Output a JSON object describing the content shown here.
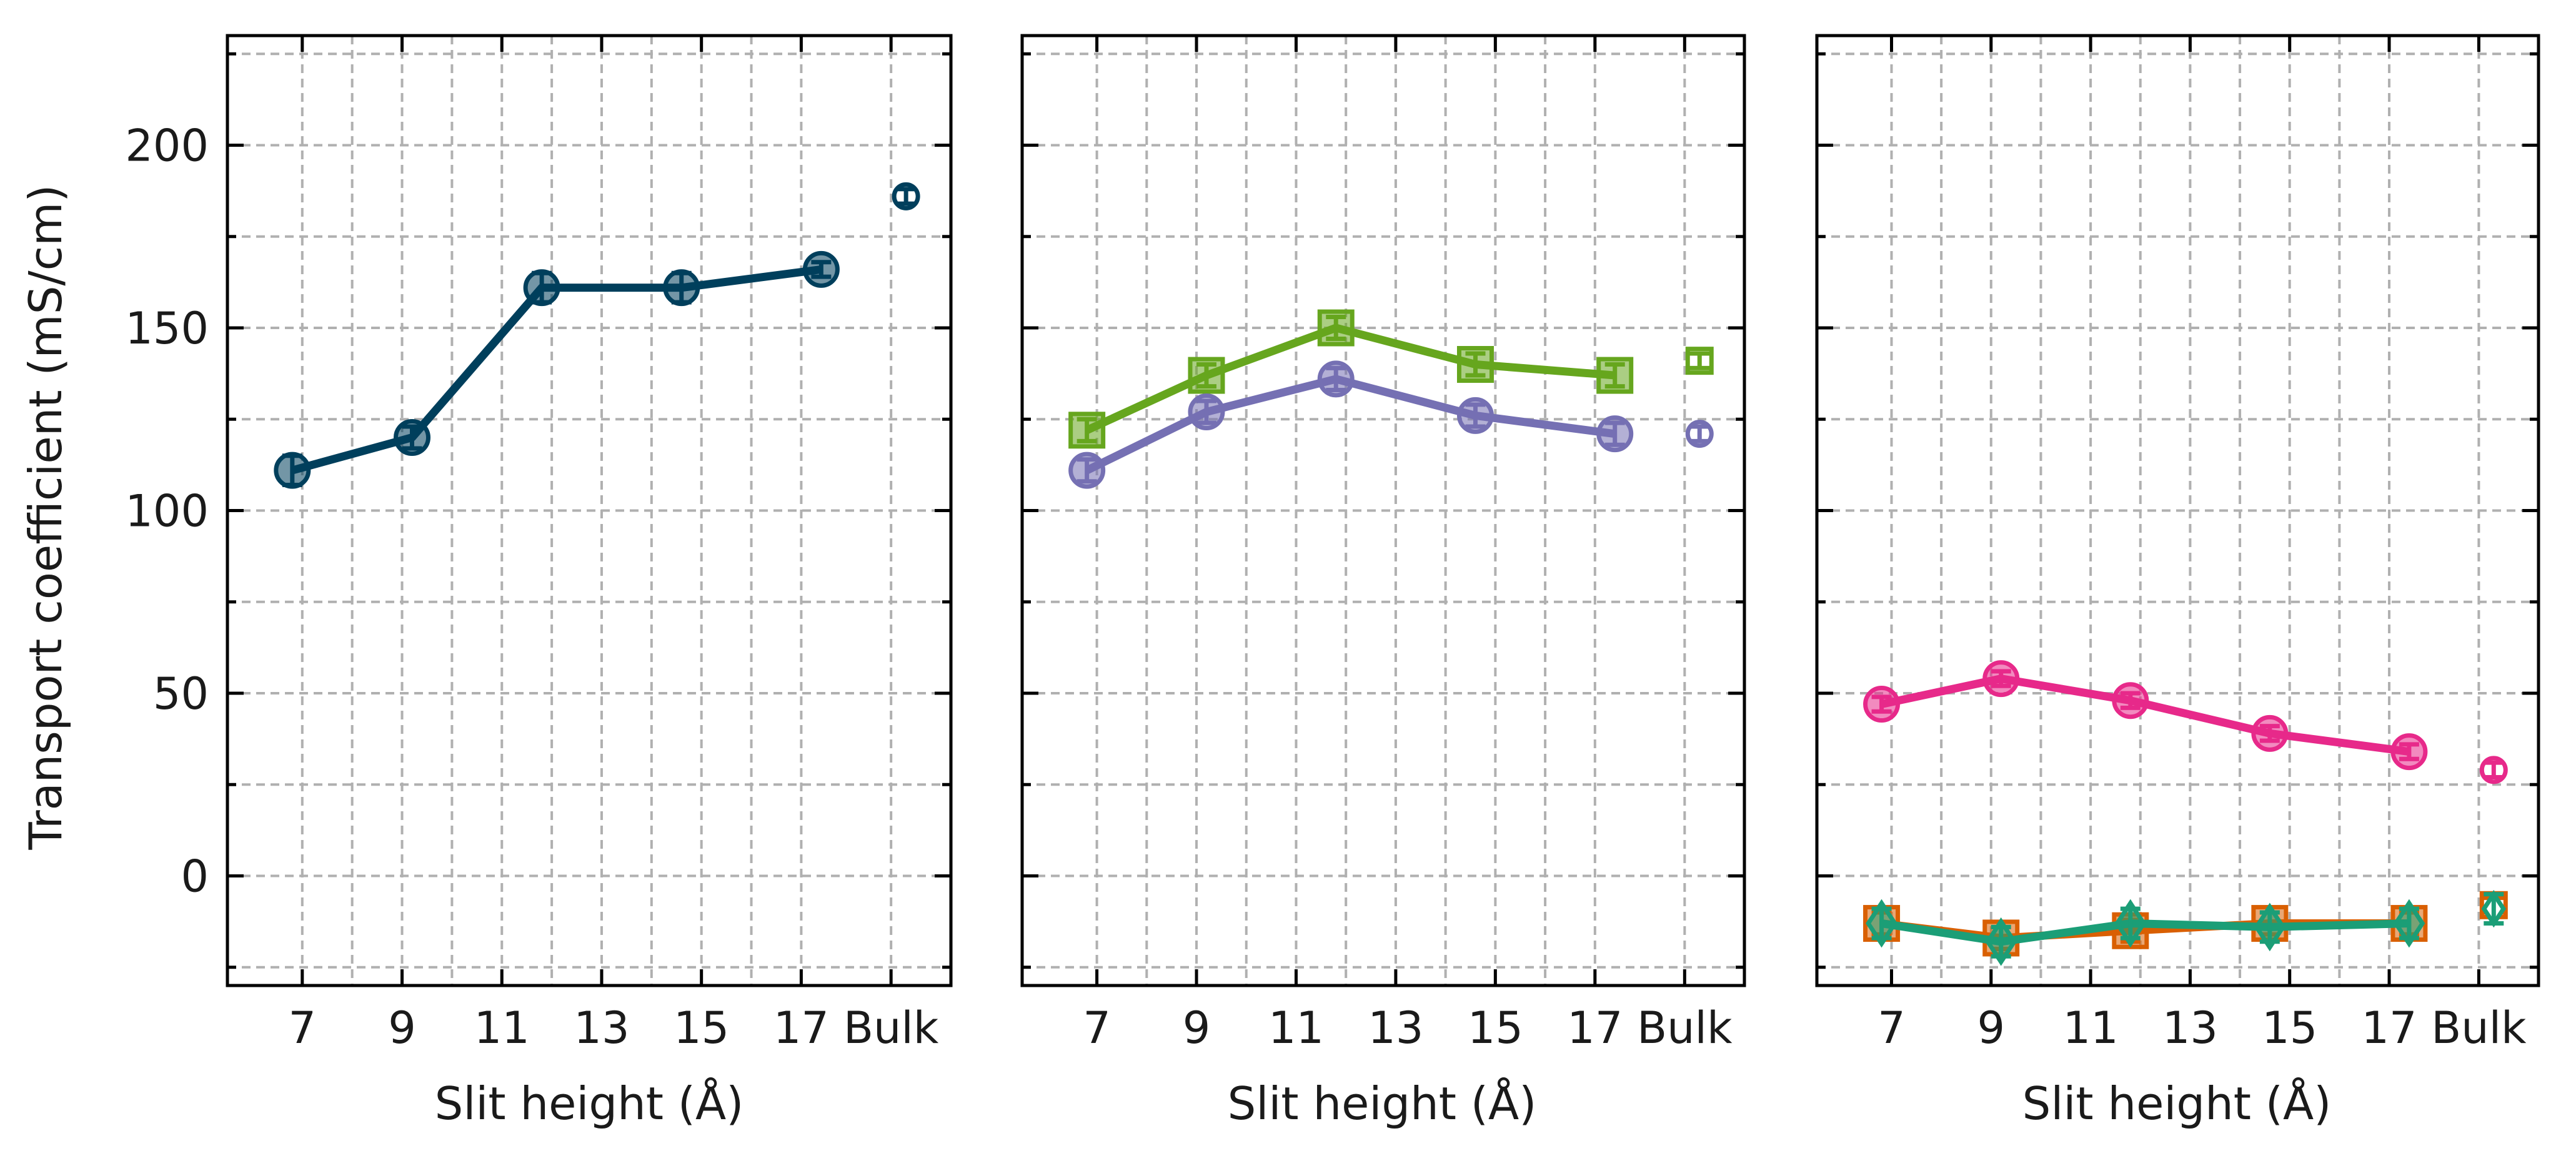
{
  "figure": {
    "ylabel": "Transport coefficient (mS/cm)",
    "xlabel": "Slit height (Å)"
  },
  "chart_data": [
    {
      "type": "line",
      "panel": "left",
      "xlabel": "Slit height (Å)",
      "ylabel": "Transport coefficient (mS/cm)",
      "xlim": [
        5.5,
        20.0
      ],
      "ylim": [
        -30,
        230
      ],
      "xticks": [
        7,
        9,
        11,
        13,
        15,
        17,
        18.8
      ],
      "xtick_labels": [
        "7",
        "9",
        "11",
        "13",
        "15",
        "17",
        "Bulk"
      ],
      "yticks": [
        0,
        50,
        100,
        150,
        200
      ],
      "ytick_labels": [
        "0",
        "50",
        "100",
        "150",
        "200"
      ],
      "grid": true,
      "series": [
        {
          "color": "#003f5c",
          "marker": "circle",
          "x": [
            6.8,
            9.2,
            11.8,
            14.6,
            17.4
          ],
          "y": [
            111,
            120,
            161,
            161,
            166
          ],
          "yerr": [
            4,
            3,
            4,
            4,
            2
          ],
          "bulk": {
            "x": 19.1,
            "y": 186,
            "yerr": 2
          }
        }
      ]
    },
    {
      "type": "line",
      "panel": "middle",
      "xlabel": "Slit height (Å)",
      "xlim": [
        5.5,
        20.0
      ],
      "ylim": [
        -30,
        230
      ],
      "xticks": [
        7,
        9,
        11,
        13,
        15,
        17,
        18.8
      ],
      "xtick_labels": [
        "7",
        "9",
        "11",
        "13",
        "15",
        "17",
        "Bulk"
      ],
      "yticks": [
        0,
        50,
        100,
        150,
        200
      ],
      "grid": true,
      "series": [
        {
          "color": "#66a61e",
          "marker": "square",
          "x": [
            6.8,
            9.2,
            11.8,
            14.6,
            17.4
          ],
          "y": [
            122,
            137,
            150,
            140,
            137
          ],
          "yerr": [
            3,
            3,
            3,
            3,
            3
          ],
          "bulk": {
            "x": 19.1,
            "y": 141,
            "yerr": 2
          }
        },
        {
          "color": "#7570b3",
          "marker": "circle",
          "x": [
            6.8,
            9.2,
            11.8,
            14.6,
            17.4
          ],
          "y": [
            111,
            127,
            136,
            126,
            121
          ],
          "yerr": [
            3,
            3,
            3,
            3,
            3
          ],
          "bulk": {
            "x": 19.1,
            "y": 121,
            "yerr": 2
          }
        }
      ]
    },
    {
      "type": "line",
      "panel": "right",
      "xlabel": "Slit height (Å)",
      "xlim": [
        5.5,
        20.0
      ],
      "ylim": [
        -30,
        230
      ],
      "xticks": [
        7,
        9,
        11,
        13,
        15,
        17,
        18.8
      ],
      "xtick_labels": [
        "7",
        "9",
        "11",
        "13",
        "15",
        "17",
        "Bulk"
      ],
      "yticks": [
        0,
        50,
        100,
        150,
        200
      ],
      "grid": true,
      "series": [
        {
          "color": "#e7298a",
          "marker": "circle",
          "x": [
            6.8,
            9.2,
            11.8,
            14.6,
            17.4
          ],
          "y": [
            47,
            54,
            48,
            39,
            34
          ],
          "yerr": [
            2,
            2,
            2,
            2,
            2
          ],
          "bulk": {
            "x": 19.1,
            "y": 29,
            "yerr": 2
          }
        },
        {
          "color": "#d95f02",
          "marker": "square",
          "x": [
            6.8,
            9.2,
            11.8,
            14.6,
            17.4
          ],
          "y": [
            -13,
            -17,
            -15,
            -13,
            -13
          ],
          "yerr": [
            3,
            3,
            3,
            3,
            3
          ],
          "bulk": {
            "x": 19.1,
            "y": -8,
            "yerr": 2
          }
        },
        {
          "color": "#1b9e77",
          "marker": "diamond",
          "x": [
            6.8,
            9.2,
            11.8,
            14.6,
            17.4
          ],
          "y": [
            -13,
            -18,
            -13,
            -14,
            -13
          ],
          "yerr": [
            4,
            4,
            4,
            4,
            4
          ],
          "bulk": {
            "x": 19.1,
            "y": -9,
            "yerr": 4
          }
        }
      ]
    }
  ]
}
